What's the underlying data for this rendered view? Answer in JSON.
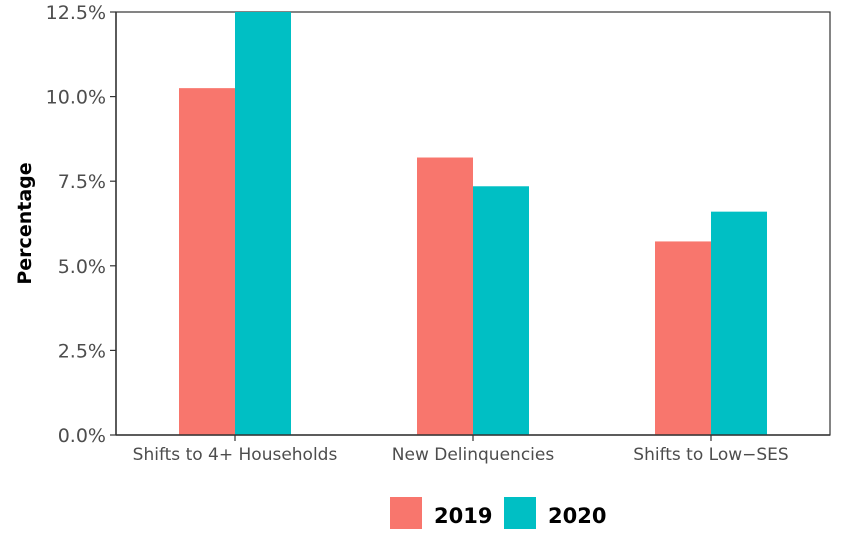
{
  "chart_data": {
    "type": "bar",
    "title": "",
    "xlabel": "",
    "ylabel": "Percentage",
    "categories": [
      "Shifts to 4+ Households",
      "New Delinquencies",
      "Shifts to Low−SES"
    ],
    "series": [
      {
        "name": "2019",
        "color": "#F8766D",
        "values": [
          10.25,
          8.2,
          5.72
        ]
      },
      {
        "name": "2020",
        "color": "#00BFC4",
        "values": [
          12.5,
          7.35,
          6.6
        ]
      }
    ],
    "ylim": [
      0,
      12.5
    ],
    "yticks": [
      0,
      2.5,
      5,
      7.5,
      10,
      12.5
    ],
    "ytick_labels": [
      "0.0%",
      "2.5%",
      "5.0%",
      "7.5%",
      "10.0%",
      "12.5%"
    ],
    "grid": false,
    "legend_position": "bottom"
  }
}
